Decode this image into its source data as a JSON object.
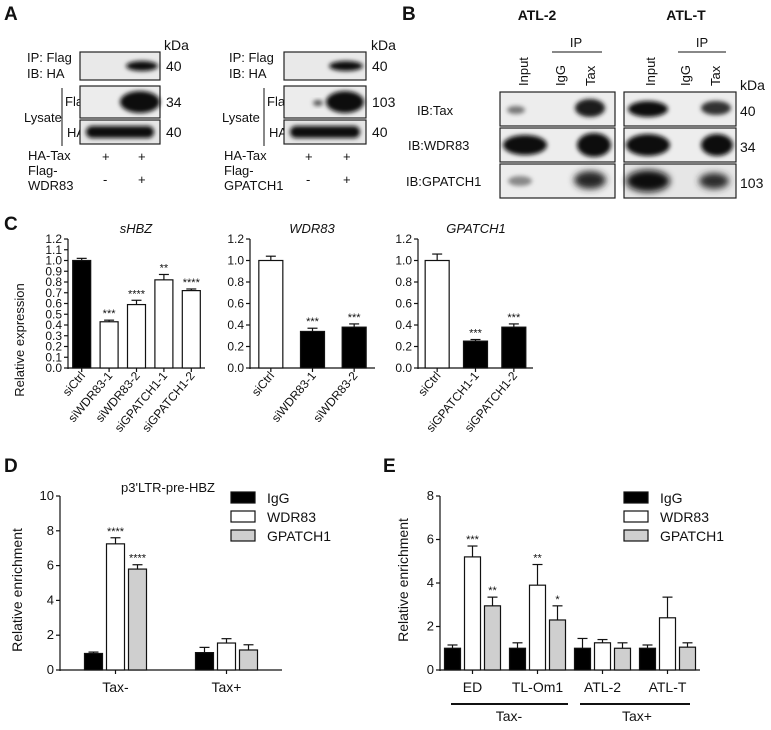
{
  "panels": {
    "A": {
      "letter": "A",
      "blots": [
        {
          "kda_label": "kDa",
          "ip_lines": [
            "IP: Flag",
            "IB: HA"
          ],
          "lysate_label": "Lysate",
          "rows": [
            {
              "label": "",
              "kda": "40"
            },
            {
              "label": "Flag",
              "kda": "34"
            },
            {
              "label": "HA",
              "kda": "40"
            }
          ],
          "conditions": [
            {
              "label": "HA-Tax",
              "signs": [
                "+",
                "+"
              ]
            },
            {
              "label": "Flag-",
              "label2": "WDR83",
              "signs": [
                "-",
                "+"
              ]
            }
          ]
        },
        {
          "kda_label": "kDa",
          "ip_lines": [
            "IP: Flag",
            "IB: HA"
          ],
          "lysate_label": "Lysate",
          "rows": [
            {
              "label": "",
              "kda": "40"
            },
            {
              "label": "Flag",
              "kda": "103"
            },
            {
              "label": "HA",
              "kda": "40"
            }
          ],
          "conditions": [
            {
              "label": "HA-Tax",
              "signs": [
                "+",
                "+"
              ]
            },
            {
              "label": "Flag-",
              "label2": "GPATCH1",
              "signs": [
                "-",
                "+"
              ]
            }
          ]
        }
      ]
    },
    "B": {
      "letter": "B",
      "groups": [
        "ATL-2",
        "ATL-T"
      ],
      "ip_label": "IP",
      "lanes": [
        "Input",
        "IgG",
        "Tax"
      ],
      "kda_label": "kDa",
      "rows": [
        {
          "label": "IB:Tax",
          "kda": "40"
        },
        {
          "label": "IB:WDR83",
          "kda": "34"
        },
        {
          "label": "IB:GPATCH1",
          "kda": "103"
        }
      ]
    },
    "C": {
      "letter": "C",
      "ylabel": "Relative expression"
    },
    "D": {
      "letter": "D",
      "ylabel": "Relative enrichment"
    },
    "E": {
      "letter": "E",
      "ylabel": "Relative enrichment",
      "group_labels": [
        "Tax-",
        "Tax+"
      ]
    }
  },
  "legend": [
    {
      "name": "IgG",
      "color": "#000000"
    },
    {
      "name": "WDR83",
      "color": "#ffffff"
    },
    {
      "name": "GPATCH1",
      "color": "#cfcfcf"
    }
  ],
  "chart_data": [
    {
      "id": "C1",
      "type": "bar",
      "title": "sHBZ",
      "ylabel": "Relative expression",
      "ylim": [
        0,
        1.2
      ],
      "yticks": [
        "0.0",
        "0.1",
        "0.2",
        "0.3",
        "0.4",
        "0.5",
        "0.6",
        "0.7",
        "0.8",
        "0.9",
        "1.0",
        "1.1",
        "1.2"
      ],
      "categories": [
        "siCtrl",
        "siWDR83-1",
        "siWDR83-2",
        "siGPATCH1-1",
        "siGPATCH1-2"
      ],
      "values": [
        1.0,
        0.43,
        0.59,
        0.82,
        0.72
      ],
      "errors": [
        0.02,
        0.015,
        0.04,
        0.05,
        0.015
      ],
      "colors": [
        "#000000",
        "#ffffff",
        "#ffffff",
        "#ffffff",
        "#ffffff"
      ],
      "annotations": [
        "",
        "***",
        "****",
        "**",
        "****"
      ]
    },
    {
      "id": "C2",
      "type": "bar",
      "title": "WDR83",
      "ylim": [
        0,
        1.2
      ],
      "yticks": [
        "0.0",
        "0.2",
        "0.4",
        "0.6",
        "0.8",
        "1.0",
        "1.2"
      ],
      "categories": [
        "siCtrl",
        "siWDR83-1",
        "siWDR83-2"
      ],
      "values": [
        1.0,
        0.34,
        0.38
      ],
      "errors": [
        0.04,
        0.03,
        0.03
      ],
      "colors": [
        "#ffffff",
        "#000000",
        "#000000"
      ],
      "annotations": [
        "",
        "***",
        "***"
      ]
    },
    {
      "id": "C3",
      "type": "bar",
      "title": "GPATCH1",
      "ylim": [
        0,
        1.2
      ],
      "yticks": [
        "0.0",
        "0.2",
        "0.4",
        "0.6",
        "0.8",
        "1.0",
        "1.2"
      ],
      "categories": [
        "siCtrl",
        "siGPATCH1-1",
        "siGPATCH1-2"
      ],
      "values": [
        1.0,
        0.25,
        0.38
      ],
      "errors": [
        0.06,
        0.015,
        0.03
      ],
      "colors": [
        "#ffffff",
        "#000000",
        "#000000"
      ],
      "annotations": [
        "",
        "***",
        "***"
      ]
    },
    {
      "id": "D",
      "type": "bar",
      "title": "p3'LTR-pre-HBZ",
      "ylabel": "Relative enrichment",
      "ylim": [
        0,
        10
      ],
      "yticks": [
        "0",
        "2",
        "4",
        "6",
        "8",
        "10"
      ],
      "categories": [
        "Tax-",
        "Tax+"
      ],
      "series": [
        {
          "name": "IgG",
          "values": [
            0.95,
            1.0
          ],
          "errors": [
            0.08,
            0.3
          ],
          "annotations": [
            "",
            ""
          ]
        },
        {
          "name": "WDR83",
          "values": [
            7.25,
            1.55
          ],
          "errors": [
            0.35,
            0.25
          ],
          "annotations": [
            "****",
            ""
          ]
        },
        {
          "name": "GPATCH1",
          "values": [
            5.8,
            1.15
          ],
          "errors": [
            0.25,
            0.3
          ],
          "annotations": [
            "****",
            ""
          ]
        }
      ]
    },
    {
      "id": "E",
      "type": "bar",
      "ylabel": "Relative enrichment",
      "ylim": [
        0,
        8
      ],
      "yticks": [
        "0",
        "2",
        "4",
        "6",
        "8"
      ],
      "categories": [
        "ED",
        "TL-Om1",
        "ATL-2",
        "ATL-T"
      ],
      "series": [
        {
          "name": "IgG",
          "values": [
            1.0,
            1.0,
            1.0,
            1.0
          ],
          "errors": [
            0.15,
            0.25,
            0.45,
            0.15
          ],
          "annotations": [
            "",
            "",
            "",
            ""
          ]
        },
        {
          "name": "WDR83",
          "values": [
            5.2,
            3.9,
            1.25,
            2.4
          ],
          "errors": [
            0.5,
            0.95,
            0.15,
            0.95
          ],
          "annotations": [
            "***",
            "**",
            "",
            ""
          ]
        },
        {
          "name": "GPATCH1",
          "values": [
            2.95,
            2.3,
            1.0,
            1.05
          ],
          "errors": [
            0.4,
            0.65,
            0.25,
            0.2
          ],
          "annotations": [
            "**",
            "*",
            "",
            ""
          ]
        }
      ]
    }
  ]
}
